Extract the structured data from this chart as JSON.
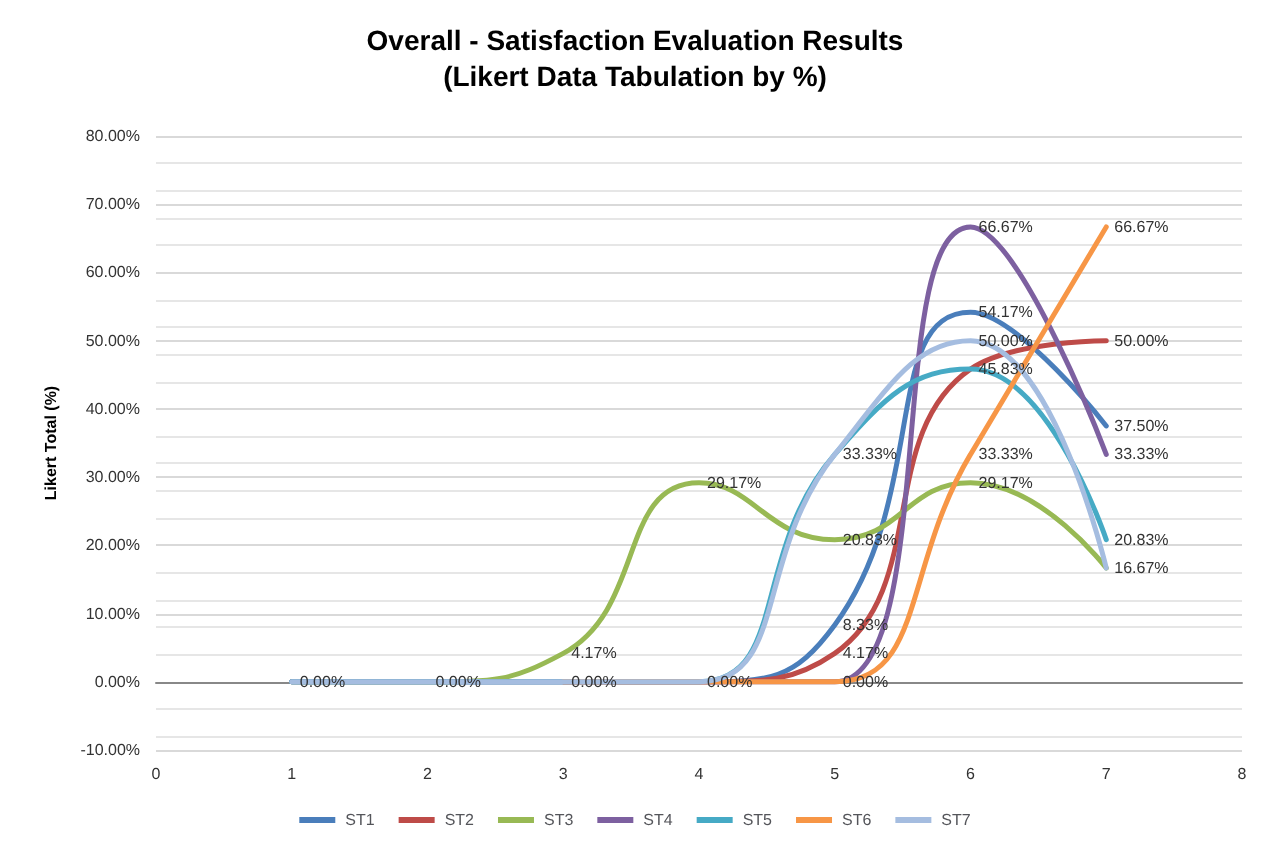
{
  "chart_data": {
    "type": "line",
    "title": "Overall - Satisfaction Evaluation Results\n(Likert Data Tabulation by %)",
    "ylabel": "Likert Total (%)",
    "x": [
      1,
      2,
      3,
      4,
      5,
      6,
      7
    ],
    "series": [
      {
        "name": "ST1",
        "color": "#4a7ebb",
        "values": [
          0,
          0,
          0,
          0,
          8.33,
          54.17,
          37.5
        ],
        "value_labels": [
          null,
          null,
          null,
          null,
          "8.33%",
          "54.17%",
          "37.50%"
        ]
      },
      {
        "name": "ST2",
        "color": "#be4b48",
        "values": [
          null,
          null,
          0,
          0,
          4.17,
          45.83,
          50
        ],
        "value_labels": [
          null,
          null,
          null,
          null,
          "4.17%",
          null,
          "50.00%"
        ]
      },
      {
        "name": "ST3",
        "color": "#98b954",
        "values": [
          0,
          0,
          4.17,
          29.17,
          20.83,
          29.17,
          16.67
        ],
        "value_labels": [
          null,
          null,
          "4.17%",
          "29.17%",
          "20.83%",
          "29.17%",
          null
        ]
      },
      {
        "name": "ST4",
        "color": "#7d60a0",
        "values": [
          0,
          0,
          0,
          0,
          0,
          66.67,
          33.33
        ],
        "value_labels": [
          null,
          null,
          null,
          null,
          "0.00%",
          "66.67%",
          "33.33%"
        ]
      },
      {
        "name": "ST5",
        "color": "#46aac5",
        "values": [
          0,
          0,
          0,
          0,
          33.33,
          45.83,
          20.83
        ],
        "value_labels": [
          null,
          null,
          null,
          null,
          "33.33%",
          "45.83%",
          "20.83%"
        ]
      },
      {
        "name": "ST6",
        "color": "#f79646",
        "values": [
          null,
          null,
          0,
          0,
          0,
          33.33,
          66.67
        ],
        "value_labels": [
          null,
          null,
          null,
          null,
          null,
          "33.33%",
          "66.67%"
        ]
      },
      {
        "name": "ST7",
        "color": "#a5bde0",
        "values": [
          0,
          0,
          0,
          0,
          33.33,
          50,
          16.67
        ],
        "value_labels": [
          "0.00%",
          "0.00%",
          "0.00%",
          "0.00%",
          null,
          "50.00%",
          "16.67%"
        ]
      }
    ],
    "xlim": [
      0,
      8
    ],
    "xticks": [
      0,
      1,
      2,
      3,
      4,
      5,
      6,
      7,
      8
    ],
    "ylim": [
      -10,
      80
    ],
    "yticks": [
      {
        "value": -10,
        "label": "-10.00%"
      },
      {
        "value": 0,
        "label": "0.00%"
      },
      {
        "value": 10,
        "label": "10.00%"
      },
      {
        "value": 20,
        "label": "20.00%"
      },
      {
        "value": 30,
        "label": "30.00%"
      },
      {
        "value": 40,
        "label": "40.00%"
      },
      {
        "value": 50,
        "label": "50.00%"
      },
      {
        "value": 60,
        "label": "60.00%"
      },
      {
        "value": 70,
        "label": "70.00%"
      },
      {
        "value": 80,
        "label": "80.00%"
      }
    ],
    "grid": "y",
    "legend": "bottom",
    "marker": "none",
    "line_style": "solid"
  }
}
